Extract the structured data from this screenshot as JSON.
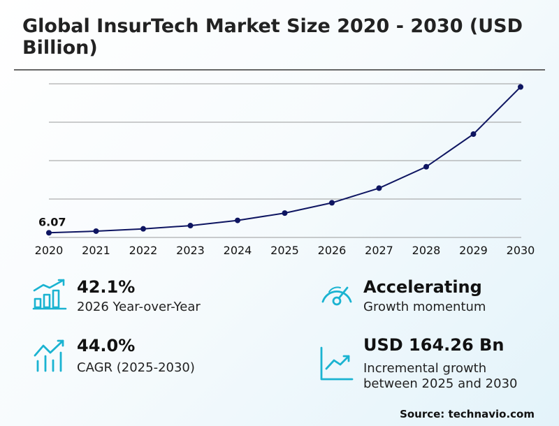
{
  "title": "Global InsurTech Market Size 2020 - 2030 (USD Billion)",
  "chart_data": {
    "type": "line",
    "x": [
      "2020",
      "2021",
      "2022",
      "2023",
      "2024",
      "2025",
      "2026",
      "2027",
      "2028",
      "2029",
      "2030"
    ],
    "series": [
      {
        "values": [
          6.07,
          8.2,
          11.2,
          15.4,
          22.2,
          31.7,
          45.1,
          64.2,
          92.0,
          134.5,
          195.9
        ]
      }
    ],
    "annotations": [
      {
        "x": "2020",
        "label": "6.07"
      }
    ],
    "ylim": [
      0,
      200
    ],
    "grid": true,
    "line_color": "#0e1561"
  },
  "kpis": [
    {
      "value": "42.1%",
      "label": "2026 Year-over-Year",
      "icon": "bar-chart-growth-icon"
    },
    {
      "value": "Accelerating",
      "label": "Growth momentum",
      "icon": "speedometer-icon"
    },
    {
      "value": "44.0%",
      "label": "CAGR (2025-2030)",
      "icon": "trend-bars-icon"
    },
    {
      "value": "USD 164.26 Bn",
      "label_line1": "Incremental growth",
      "label_line2": "between 2025 and 2030",
      "icon": "trend-line-chart-icon"
    }
  ],
  "source": "Source: technavio.com",
  "colors": {
    "accent": "#1ab3d1",
    "line": "#0e1561",
    "grid": "#9a9a9a"
  }
}
